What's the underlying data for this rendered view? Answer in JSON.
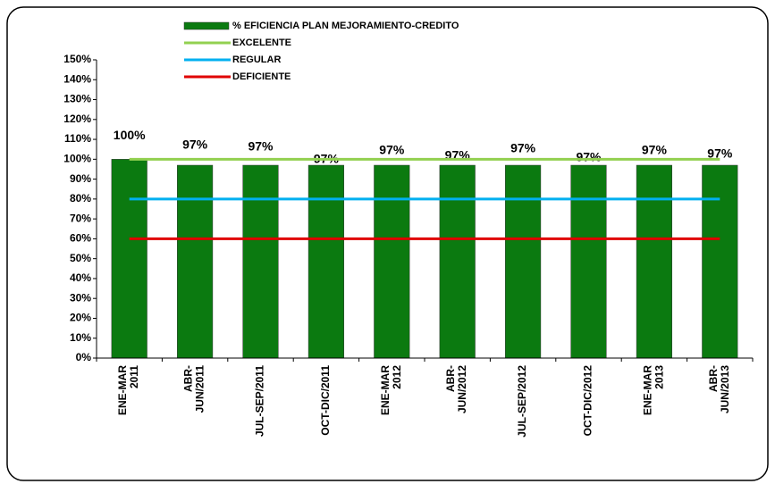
{
  "chart_data": {
    "type": "bar",
    "categories": [
      [
        "ENE-MAR",
        "2011"
      ],
      [
        "ABR-",
        "JUN/2011"
      ],
      [
        "JUL-SEP/2011"
      ],
      [
        "OCT-DIC/2011"
      ],
      [
        "ENE-MAR",
        "2012"
      ],
      [
        "ABR-",
        "JUN/2012"
      ],
      [
        "JUL-SEP/2012"
      ],
      [
        "OCT-DIC/2012"
      ],
      [
        "ENE-MAR",
        "2013"
      ],
      [
        "ABR-",
        "JUN/2013"
      ]
    ],
    "series": [
      {
        "name": "% EFICIENCIA  PLAN MEJORAMIENTO-CREDITO",
        "color": "#0b7a10",
        "kind": "bar",
        "values": [
          100,
          97,
          97,
          97,
          97,
          97,
          97,
          97,
          97,
          97
        ],
        "value_labels": [
          "100%",
          "97%",
          "97%",
          "97%",
          "97%",
          "97%",
          "97%",
          "97%",
          "97%",
          "97%"
        ]
      },
      {
        "name": "EXCELENTE",
        "color": "#92d050",
        "kind": "line",
        "values": [
          100,
          100,
          100,
          100,
          100,
          100,
          100,
          100,
          100,
          100
        ]
      },
      {
        "name": "REGULAR",
        "color": "#00b0f0",
        "kind": "line",
        "values": [
          80,
          80,
          80,
          80,
          80,
          80,
          80,
          80,
          80,
          80
        ]
      },
      {
        "name": "DEFICIENTE",
        "color": "#e00000",
        "kind": "line",
        "values": [
          60,
          60,
          60,
          60,
          60,
          60,
          60,
          60,
          60,
          60
        ]
      }
    ],
    "ylim": [
      0,
      150
    ],
    "yticks": [
      {
        "value": 0,
        "label": "0%"
      },
      {
        "value": 10,
        "label": "10%"
      },
      {
        "value": 20,
        "label": "20%"
      },
      {
        "value": 30,
        "label": "30%"
      },
      {
        "value": 40,
        "label": "40%"
      },
      {
        "value": 50,
        "label": "50%"
      },
      {
        "value": 60,
        "label": "60%"
      },
      {
        "value": 70,
        "label": "70%"
      },
      {
        "value": 80,
        "label": "80%"
      },
      {
        "value": 90,
        "label": "90%"
      },
      {
        "value": 100,
        "label": "100%"
      },
      {
        "value": 110,
        "label": "110%"
      },
      {
        "value": 120,
        "label": "120%"
      },
      {
        "value": 130,
        "label": "130%"
      },
      {
        "value": 140,
        "label": "140%"
      },
      {
        "value": 150,
        "label": "150%"
      }
    ],
    "grid": false
  }
}
